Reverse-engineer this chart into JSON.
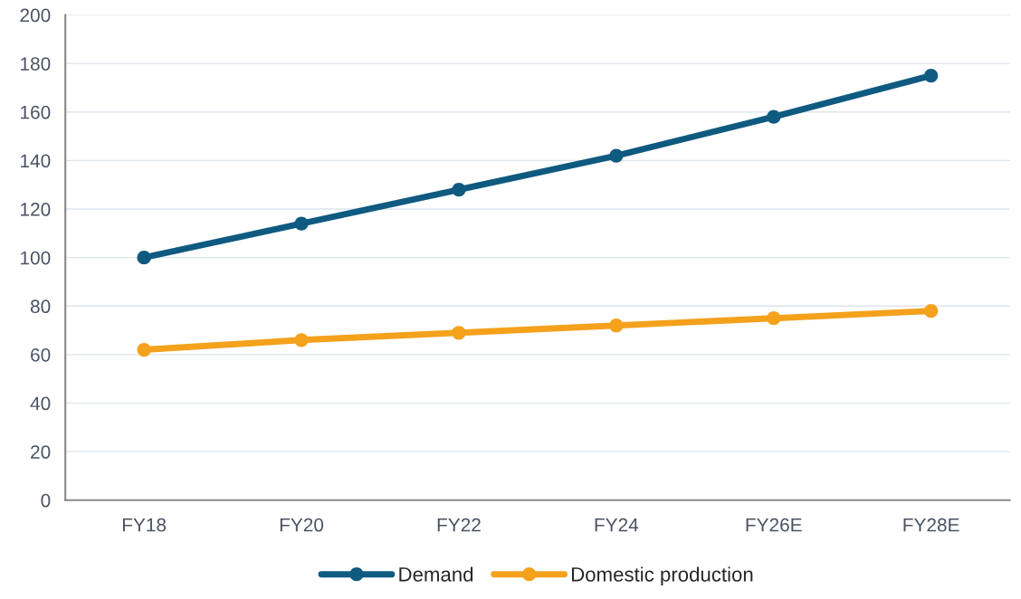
{
  "chart_data": {
    "type": "line",
    "categories": [
      "FY18",
      "FY20",
      "FY22",
      "FY24",
      "FY26E",
      "FY28E"
    ],
    "series": [
      {
        "name": "Demand",
        "color": "#0f5a80",
        "values": [
          100,
          114,
          128,
          142,
          158,
          175
        ]
      },
      {
        "name": "Domestic production",
        "color": "#f4a11c",
        "values": [
          62,
          66,
          69,
          72,
          75,
          78
        ]
      }
    ],
    "ylim": [
      0,
      200
    ],
    "yticks": [
      0,
      20,
      40,
      60,
      80,
      100,
      120,
      140,
      160,
      180,
      200
    ],
    "grid": "y",
    "legend": "bottom",
    "marker": "circle",
    "line_style": "solid"
  }
}
